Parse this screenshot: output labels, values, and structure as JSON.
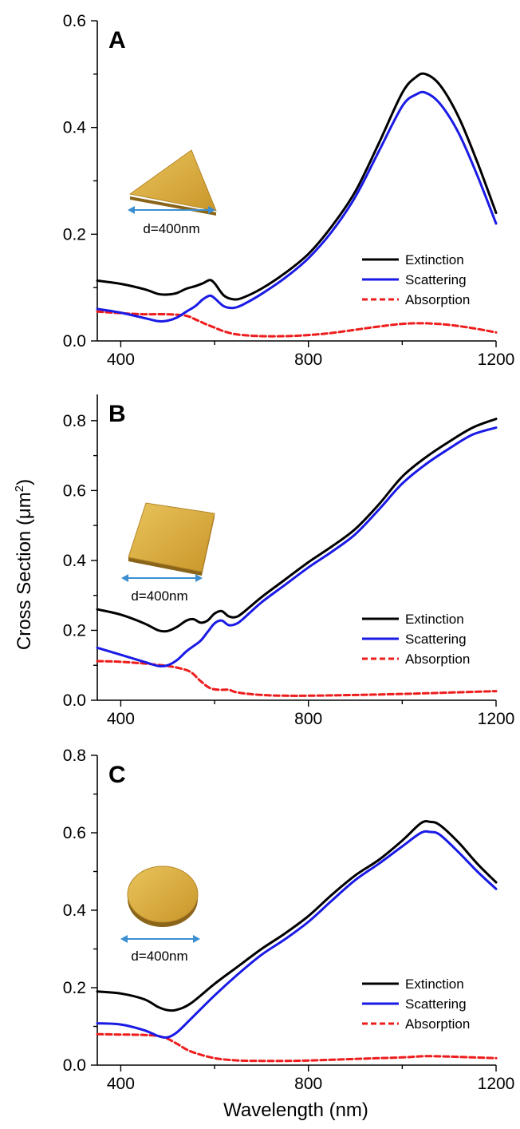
{
  "xlabel": "Wavelength (nm)",
  "ylabel": {
    "main": "Cross Section (",
    "unit": "μm",
    "sup": "2",
    "close": ")"
  },
  "colors": {
    "extinction": "#000000",
    "scattering": "#1a1ae6",
    "absorption": "#ee1c1c",
    "arrow": "#3b8fd0",
    "gold": "#d9a93a"
  },
  "chart_data": [
    {
      "type": "line",
      "panel_label": "A",
      "shape": "triangle",
      "inset_label": "d=400nm",
      "xlim": [
        350,
        1200
      ],
      "ylim": [
        0,
        0.6
      ],
      "xticks": [
        400,
        800,
        1200
      ],
      "yticks": [
        0.0,
        0.2,
        0.4,
        0.6
      ],
      "ytick_labels": [
        "0.0",
        "0.2",
        "0.4",
        "0.6"
      ],
      "legend_position": "bottom-right",
      "series": [
        {
          "name": "Extinction",
          "key": "extinction",
          "style": "solid",
          "x": [
            350,
            400,
            450,
            480,
            500,
            520,
            540,
            560,
            575,
            590,
            600,
            620,
            640,
            660,
            700,
            750,
            800,
            850,
            900,
            950,
            1000,
            1030,
            1050,
            1080,
            1120,
            1160,
            1200
          ],
          "y": [
            0.113,
            0.107,
            0.097,
            0.088,
            0.087,
            0.09,
            0.098,
            0.103,
            0.108,
            0.114,
            0.108,
            0.085,
            0.078,
            0.081,
            0.098,
            0.127,
            0.163,
            0.215,
            0.28,
            0.37,
            0.465,
            0.495,
            0.5,
            0.48,
            0.42,
            0.335,
            0.24
          ]
        },
        {
          "name": "Scattering",
          "key": "scattering",
          "style": "solid",
          "x": [
            350,
            400,
            450,
            480,
            500,
            520,
            540,
            560,
            575,
            590,
            600,
            620,
            640,
            660,
            700,
            750,
            800,
            850,
            900,
            950,
            1000,
            1030,
            1050,
            1080,
            1120,
            1160,
            1200
          ],
          "y": [
            0.06,
            0.053,
            0.043,
            0.037,
            0.038,
            0.044,
            0.055,
            0.066,
            0.078,
            0.085,
            0.08,
            0.065,
            0.062,
            0.068,
            0.088,
            0.118,
            0.155,
            0.205,
            0.27,
            0.355,
            0.44,
            0.462,
            0.465,
            0.445,
            0.39,
            0.31,
            0.22
          ]
        },
        {
          "name": "Absorption",
          "key": "absorption",
          "style": "dashed",
          "x": [
            350,
            400,
            450,
            500,
            540,
            560,
            580,
            600,
            620,
            650,
            700,
            750,
            800,
            850,
            900,
            950,
            1000,
            1050,
            1100,
            1150,
            1200
          ],
          "y": [
            0.055,
            0.052,
            0.05,
            0.05,
            0.047,
            0.04,
            0.032,
            0.025,
            0.018,
            0.012,
            0.009,
            0.009,
            0.011,
            0.015,
            0.021,
            0.027,
            0.032,
            0.033,
            0.03,
            0.024,
            0.016
          ]
        }
      ]
    },
    {
      "type": "line",
      "panel_label": "B",
      "shape": "square",
      "inset_label": "d=400nm",
      "xlim": [
        350,
        1200
      ],
      "ylim": [
        0,
        0.875
      ],
      "xticks": [
        400,
        800,
        1200
      ],
      "yticks": [
        0.0,
        0.2,
        0.4,
        0.6,
        0.8
      ],
      "ytick_labels": [
        "0.0",
        "0.2",
        "0.4",
        "0.6",
        "0.8"
      ],
      "legend_position": "bottom-right",
      "series": [
        {
          "name": "Extinction",
          "key": "extinction",
          "style": "solid",
          "x": [
            350,
            400,
            450,
            480,
            500,
            520,
            540,
            555,
            570,
            585,
            600,
            615,
            630,
            645,
            660,
            700,
            750,
            800,
            850,
            900,
            950,
            1000,
            1050,
            1100,
            1150,
            1200
          ],
          "y": [
            0.26,
            0.245,
            0.22,
            0.2,
            0.198,
            0.21,
            0.228,
            0.232,
            0.222,
            0.228,
            0.248,
            0.255,
            0.24,
            0.238,
            0.25,
            0.295,
            0.345,
            0.395,
            0.44,
            0.49,
            0.56,
            0.64,
            0.695,
            0.74,
            0.78,
            0.805
          ]
        },
        {
          "name": "Scattering",
          "key": "scattering",
          "style": "solid",
          "x": [
            350,
            400,
            450,
            480,
            500,
            520,
            540,
            555,
            570,
            585,
            600,
            615,
            630,
            645,
            660,
            700,
            750,
            800,
            850,
            900,
            950,
            1000,
            1050,
            1100,
            1150,
            1200
          ],
          "y": [
            0.15,
            0.13,
            0.11,
            0.098,
            0.1,
            0.115,
            0.14,
            0.155,
            0.17,
            0.195,
            0.22,
            0.228,
            0.215,
            0.218,
            0.232,
            0.28,
            0.33,
            0.38,
            0.425,
            0.475,
            0.545,
            0.62,
            0.675,
            0.72,
            0.76,
            0.78
          ]
        },
        {
          "name": "Absorption",
          "key": "absorption",
          "style": "dashed",
          "x": [
            350,
            400,
            450,
            500,
            530,
            550,
            570,
            590,
            610,
            630,
            650,
            700,
            750,
            800,
            900,
            1000,
            1100,
            1200
          ],
          "y": [
            0.112,
            0.11,
            0.105,
            0.098,
            0.09,
            0.08,
            0.055,
            0.035,
            0.03,
            0.03,
            0.022,
            0.015,
            0.013,
            0.013,
            0.015,
            0.018,
            0.022,
            0.026
          ]
        }
      ]
    },
    {
      "type": "line",
      "panel_label": "C",
      "shape": "disk",
      "inset_label": "d=400nm",
      "xlim": [
        350,
        1200
      ],
      "ylim": [
        0,
        0.8
      ],
      "xticks": [
        400,
        800,
        1200
      ],
      "yticks": [
        0.0,
        0.2,
        0.4,
        0.6,
        0.8
      ],
      "ytick_labels": [
        "0.0",
        "0.2",
        "0.4",
        "0.6",
        "0.8"
      ],
      "legend_position": "bottom-right",
      "series": [
        {
          "name": "Extinction",
          "key": "extinction",
          "style": "solid",
          "x": [
            350,
            400,
            450,
            480,
            500,
            520,
            550,
            600,
            650,
            700,
            750,
            800,
            850,
            900,
            950,
            1000,
            1040,
            1060,
            1080,
            1120,
            1160,
            1200
          ],
          "y": [
            0.19,
            0.185,
            0.17,
            0.15,
            0.142,
            0.143,
            0.16,
            0.21,
            0.255,
            0.3,
            0.34,
            0.385,
            0.44,
            0.49,
            0.53,
            0.58,
            0.625,
            0.628,
            0.62,
            0.575,
            0.52,
            0.472
          ]
        },
        {
          "name": "Scattering",
          "key": "scattering",
          "style": "solid",
          "x": [
            350,
            400,
            450,
            480,
            500,
            520,
            550,
            600,
            650,
            700,
            750,
            800,
            850,
            900,
            950,
            1000,
            1040,
            1060,
            1080,
            1120,
            1160,
            1200
          ],
          "y": [
            0.108,
            0.105,
            0.09,
            0.075,
            0.072,
            0.085,
            0.12,
            0.18,
            0.235,
            0.285,
            0.325,
            0.37,
            0.425,
            0.478,
            0.52,
            0.565,
            0.6,
            0.602,
            0.595,
            0.55,
            0.5,
            0.455
          ]
        },
        {
          "name": "Absorption",
          "key": "absorption",
          "style": "dashed",
          "x": [
            350,
            400,
            450,
            480,
            500,
            520,
            550,
            600,
            650,
            700,
            750,
            800,
            900,
            1000,
            1050,
            1100,
            1150,
            1200
          ],
          "y": [
            0.08,
            0.079,
            0.078,
            0.075,
            0.068,
            0.055,
            0.035,
            0.018,
            0.012,
            0.011,
            0.011,
            0.012,
            0.016,
            0.02,
            0.023,
            0.022,
            0.02,
            0.018
          ]
        }
      ]
    }
  ]
}
